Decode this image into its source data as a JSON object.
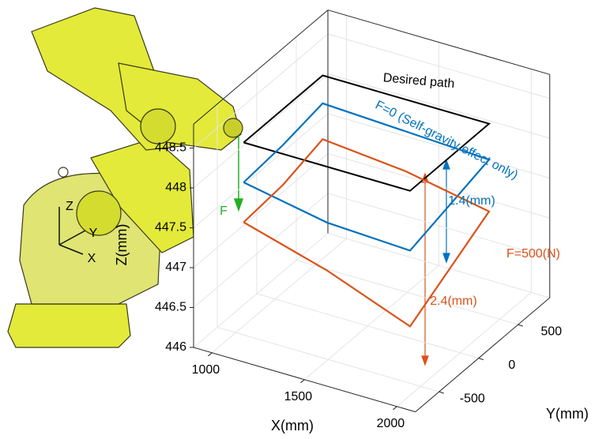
{
  "chart_data": {
    "type": "line3d",
    "x_label": "X(mm)",
    "y_label": "Y(mm)",
    "z_label": "Z(mm)",
    "xlim": [
      900,
      2100
    ],
    "ylim": [
      -800,
      900
    ],
    "zlim": [
      446,
      448.8
    ],
    "xticks": [
      1000,
      1500,
      2000
    ],
    "yticks": [
      -500,
      0,
      500
    ],
    "zticks": [
      446,
      446.5,
      447,
      447.5,
      448,
      448.5
    ],
    "grid": true,
    "series": [
      {
        "name": "Desired path",
        "color": "#000000",
        "x": [
          1000,
          1900,
          1900,
          1000,
          1000
        ],
        "y": [
          -400,
          -400,
          600,
          600,
          -400
        ],
        "z": [
          448.3,
          448.3,
          448.3,
          448.3,
          448.3
        ]
      },
      {
        "name": "F=0 (Self-gravity effect only)",
        "color": "#0072bd",
        "x": [
          1000,
          1450,
          1900,
          1900,
          1900,
          1450,
          1000,
          1000,
          1000
        ],
        "y": [
          -400,
          -400,
          -400,
          100,
          600,
          600,
          600,
          100,
          -400
        ],
        "z": [
          447.8,
          447.6,
          447.55,
          447.7,
          447.85,
          447.9,
          447.95,
          447.85,
          447.8
        ]
      },
      {
        "name": "F=500(N)",
        "color": "#d95319",
        "x": [
          1000,
          1450,
          1900,
          1900,
          1900,
          1450,
          1000,
          1000,
          1000
        ],
        "y": [
          -400,
          -400,
          -400,
          100,
          600,
          600,
          600,
          100,
          -400
        ],
        "z": [
          447.3,
          447.0,
          446.6,
          446.9,
          447.2,
          447.4,
          447.5,
          447.35,
          447.3
        ]
      }
    ],
    "annotations": [
      "1.4(mm)",
      "2.4(mm)",
      "F",
      "Z",
      "Y",
      "X"
    ]
  }
}
